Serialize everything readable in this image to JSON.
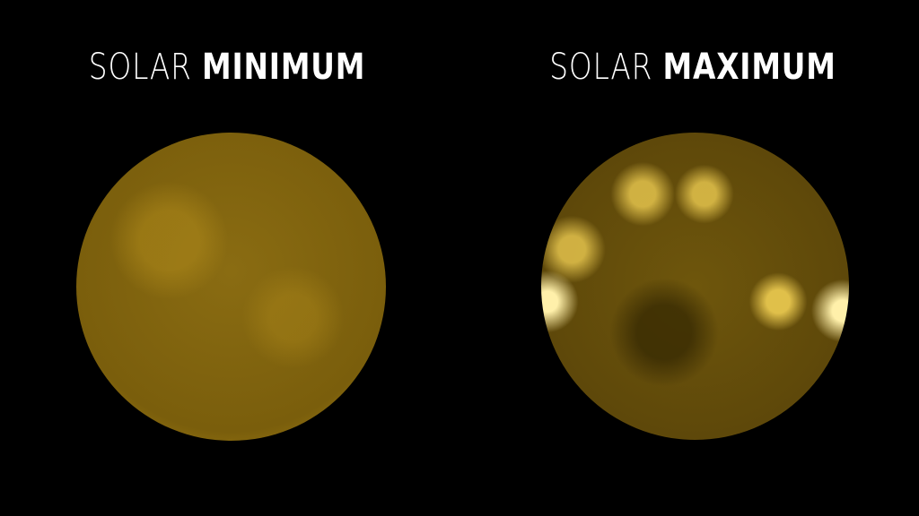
{
  "titles": {
    "minimum": {
      "light": "SOLAR",
      "bold": "MINIMUM"
    },
    "maximum": {
      "light": "SOLAR",
      "bold": "MAXIMUM"
    }
  },
  "colors": {
    "sun": "#a88414",
    "background": "#000000",
    "text": "#ffffff"
  }
}
